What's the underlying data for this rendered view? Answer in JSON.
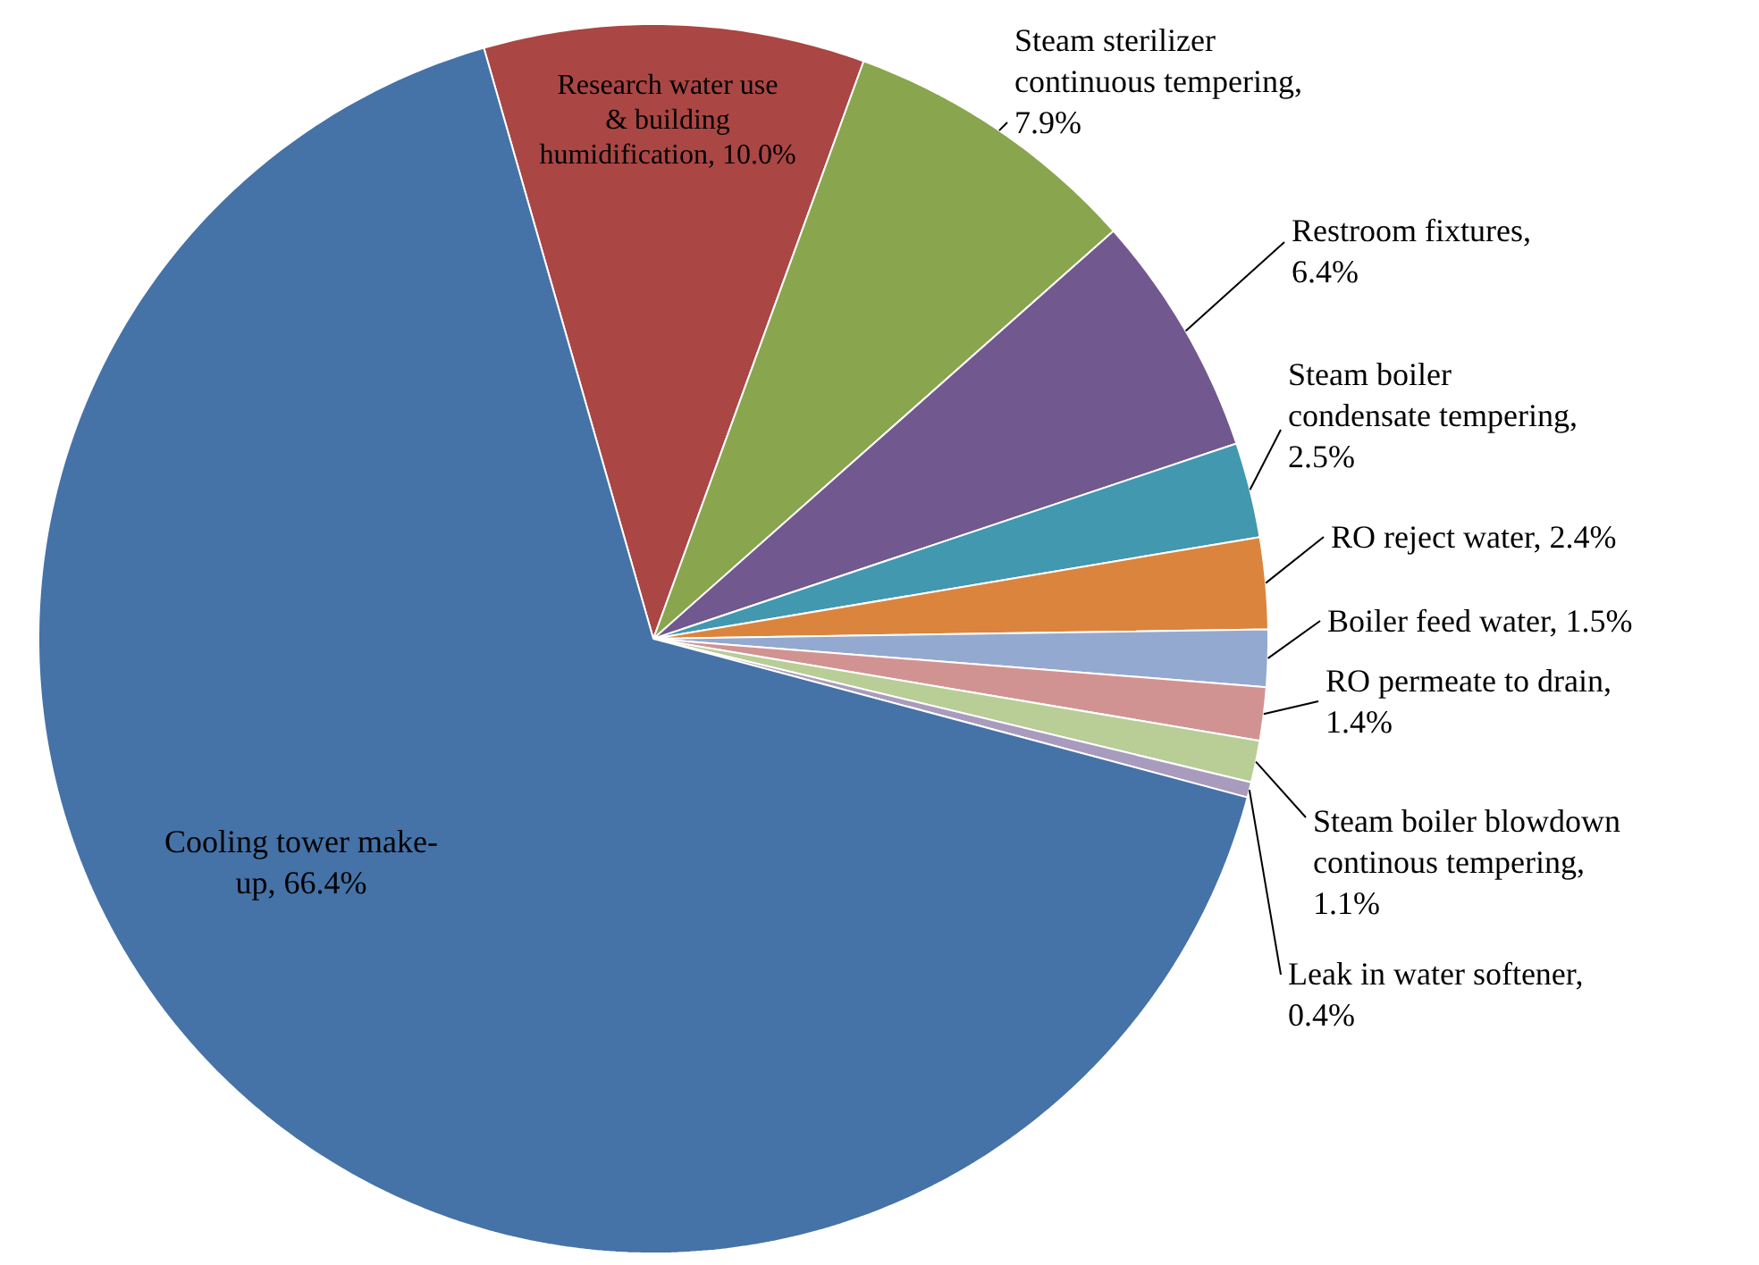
{
  "chart_data": {
    "type": "pie",
    "categories": [
      "Research water use & building humidification, 10.0%",
      "Steam sterilizer continuous tempering, 7.9%",
      "Restroom fixtures, 6.4%",
      "Steam boiler condensate tempering, 2.5%",
      "RO reject water, 2.4%",
      "Boiler feed water, 1.5%",
      "RO permeate to drain, 1.4%",
      "Steam boiler blowdown continous tempering, 1.1%",
      "Leak in water softener, 0.4%",
      "Cooling tower make-up, 66.4%"
    ],
    "values": [
      10.0,
      7.9,
      6.4,
      2.5,
      2.4,
      1.5,
      1.4,
      1.1,
      0.4,
      66.4
    ],
    "colors": [
      "#aa4643",
      "#89a54e",
      "#71588f",
      "#4198af",
      "#db843d",
      "#93a9cf",
      "#d19392",
      "#b9cd96",
      "#a99bbd",
      "#4572a7"
    ]
  }
}
